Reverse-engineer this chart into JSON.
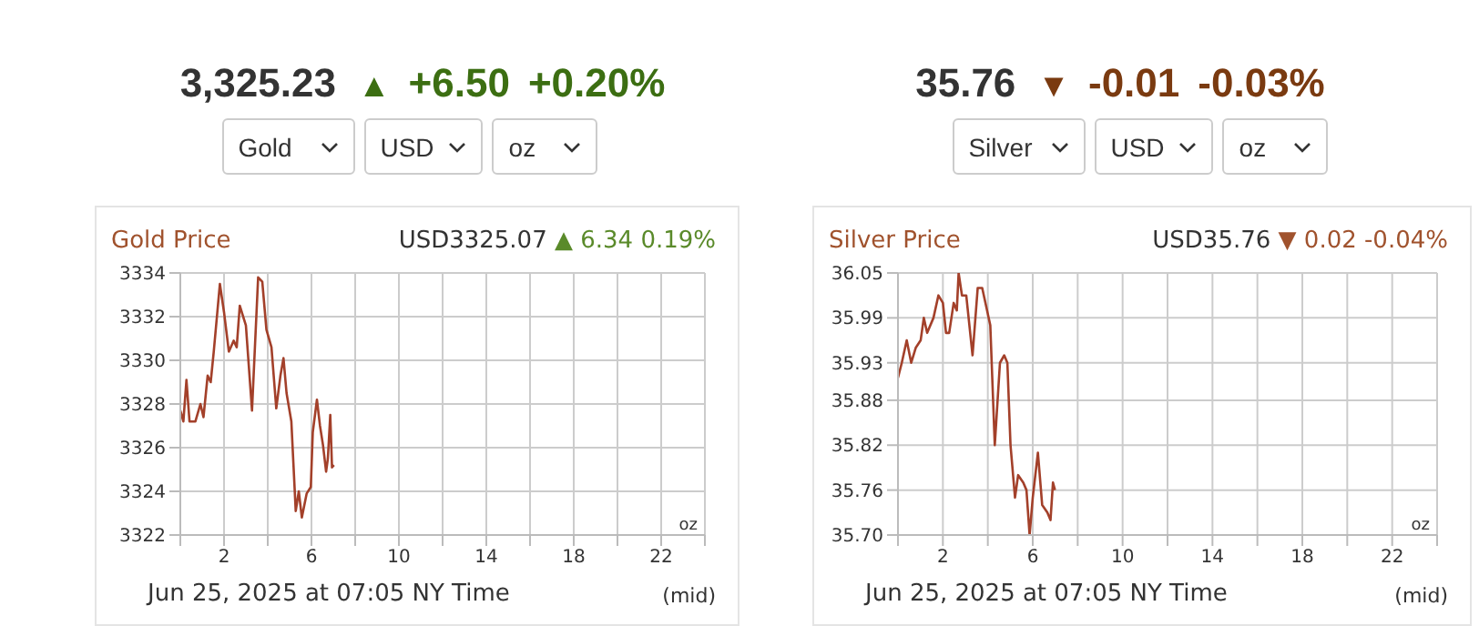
{
  "chart_data": [
    {
      "type": "line",
      "title": "Gold Price",
      "subtitle": "USD3325.07 ▲ 6.34 0.19%",
      "annotations": [
        "3,325.23",
        "▲",
        "+6.50",
        "+0.20%",
        "Gold",
        "USD",
        "oz",
        "oz",
        "Jun 25, 2025 at 07:05 NY Time",
        "(mid)"
      ],
      "xlim": [
        0,
        24
      ],
      "xticks": [
        {
          "value": 0,
          "label": null
        },
        2,
        {
          "value": 4,
          "label": null
        },
        6,
        {
          "value": 8,
          "label": null
        },
        10,
        {
          "value": 12,
          "label": null
        },
        14,
        {
          "value": 16,
          "label": null
        },
        18,
        {
          "value": 20,
          "label": null
        },
        22,
        {
          "value": 24,
          "label": null
        }
      ],
      "ylim": [
        3322,
        3334
      ],
      "yticks": [
        3322,
        3324,
        3326,
        3328,
        3330,
        3332,
        3334
      ],
      "grid": true,
      "series": [
        {
          "color": "#a3402a",
          "x": [
            0,
            0.14,
            0.28,
            0.42,
            0.69,
            0.92,
            1.06,
            1.25,
            1.39,
            1.53,
            1.81,
            2.0,
            2.22,
            2.44,
            2.58,
            2.72,
            3.0,
            3.28,
            3.56,
            3.75,
            3.94,
            4.17,
            4.39,
            4.58,
            4.72,
            4.86,
            5.08,
            5.28,
            5.42,
            5.56,
            5.78,
            5.97,
            6.06,
            6.25,
            6.39,
            6.53,
            6.67,
            6.75,
            6.86,
            6.94,
            7.03
          ],
          "values": [
            3327.7,
            3327.2,
            3329.1,
            3327.2,
            3327.2,
            3328.0,
            3327.4,
            3329.3,
            3329.0,
            3330.4,
            3333.5,
            3332.2,
            3330.4,
            3330.9,
            3330.6,
            3332.5,
            3331.6,
            3327.7,
            3333.8,
            3333.6,
            3331.4,
            3330.6,
            3327.8,
            3329.3,
            3330.1,
            3328.5,
            3327.2,
            3323.1,
            3324.0,
            3322.8,
            3323.9,
            3324.2,
            3326.7,
            3328.2,
            3327.0,
            3326.1,
            3324.9,
            3325.5,
            3327.5,
            3325.1,
            3325.2
          ]
        }
      ]
    },
    {
      "type": "line",
      "title": "Silver Price",
      "subtitle": "USD35.76 ▼ 0.02 -0.04%",
      "annotations": [
        "35.76",
        "▼",
        "-0.01",
        "-0.03%",
        "Silver",
        "USD",
        "oz",
        "oz",
        "Jun 25, 2025 at 07:05 NY Time",
        "(mid)"
      ],
      "xlim": [
        0,
        24
      ],
      "xticks": [
        {
          "value": 0,
          "label": null
        },
        2,
        {
          "value": 4,
          "label": null
        },
        6,
        {
          "value": 8,
          "label": null
        },
        10,
        {
          "value": 12,
          "label": null
        },
        14,
        {
          "value": 16,
          "label": null
        },
        18,
        {
          "value": 20,
          "label": null
        },
        22,
        {
          "value": 24,
          "label": null
        }
      ],
      "ylim": [
        35.7,
        36.05
      ],
      "yticks": [
        {
          "value": 35.7,
          "label": "35.70"
        },
        35.76,
        35.82,
        35.88,
        35.93,
        35.99,
        36.05
      ],
      "grid": true,
      "series": [
        {
          "color": "#a3402a",
          "x": [
            0,
            0.17,
            0.39,
            0.59,
            0.79,
            1.01,
            1.15,
            1.3,
            1.58,
            1.8,
            2.0,
            2.14,
            2.28,
            2.48,
            2.62,
            2.7,
            2.85,
            3.04,
            3.32,
            3.55,
            3.75,
            4.11,
            4.31,
            4.54,
            4.73,
            4.87,
            5.01,
            5.21,
            5.35,
            5.58,
            5.72,
            5.86,
            6.0,
            6.23,
            6.42,
            6.65,
            6.79,
            6.9,
            6.99
          ],
          "values": [
            35.91,
            35.93,
            35.96,
            35.93,
            35.95,
            35.96,
            35.99,
            35.97,
            35.99,
            36.02,
            36.01,
            35.97,
            35.97,
            36.01,
            36.0,
            36.05,
            36.02,
            36.02,
            35.94,
            36.03,
            36.03,
            35.98,
            35.82,
            35.93,
            35.94,
            35.93,
            35.82,
            35.75,
            35.78,
            35.77,
            35.76,
            35.7,
            35.75,
            35.81,
            35.74,
            35.73,
            35.72,
            35.77,
            35.76
          ]
        }
      ]
    }
  ]
}
